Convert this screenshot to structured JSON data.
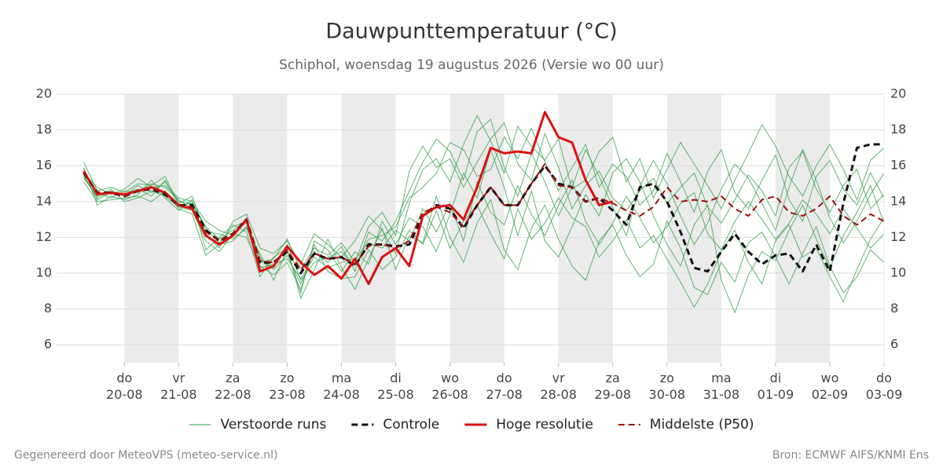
{
  "chart_data": {
    "type": "line",
    "title": "Dauwpunttemperatuur (°C)",
    "subtitle": "Schiphol, woensdag 19 augustus 2026 (Versie wo 00 uur)",
    "x": [
      "2026-08-19T06:00",
      "2026-08-19T12:00",
      "2026-08-19T18:00",
      "2026-08-20T00:00",
      "2026-08-20T06:00",
      "2026-08-20T12:00",
      "2026-08-20T18:00",
      "2026-08-21T00:00",
      "2026-08-21T06:00",
      "2026-08-21T12:00",
      "2026-08-21T18:00",
      "2026-08-22T00:00",
      "2026-08-22T06:00",
      "2026-08-22T12:00",
      "2026-08-22T18:00",
      "2026-08-23T00:00",
      "2026-08-23T06:00",
      "2026-08-23T12:00",
      "2026-08-23T18:00",
      "2026-08-24T00:00",
      "2026-08-24T06:00",
      "2026-08-24T12:00",
      "2026-08-24T18:00",
      "2026-08-25T00:00",
      "2026-08-25T06:00",
      "2026-08-25T12:00",
      "2026-08-25T18:00",
      "2026-08-26T00:00",
      "2026-08-26T06:00",
      "2026-08-26T12:00",
      "2026-08-26T18:00",
      "2026-08-27T00:00",
      "2026-08-27T06:00",
      "2026-08-27T12:00",
      "2026-08-27T18:00",
      "2026-08-28T00:00",
      "2026-08-28T06:00",
      "2026-08-28T12:00",
      "2026-08-28T18:00",
      "2026-08-29T00:00",
      "2026-08-29T06:00",
      "2026-08-29T12:00",
      "2026-08-29T18:00",
      "2026-08-30T00:00",
      "2026-08-30T06:00",
      "2026-08-30T12:00",
      "2026-08-30T18:00",
      "2026-08-31T00:00",
      "2026-08-31T06:00",
      "2026-08-31T12:00",
      "2026-08-31T18:00",
      "2026-09-01T00:00",
      "2026-09-01T06:00",
      "2026-09-01T12:00",
      "2026-09-01T18:00",
      "2026-09-02T00:00",
      "2026-09-02T06:00",
      "2026-09-02T12:00",
      "2026-09-02T18:00",
      "2026-09-03T00:00"
    ],
    "xlim": [
      "2026-08-18T18:00",
      "2026-09-03T00:00"
    ],
    "xticks": [
      {
        "value": "2026-08-20T00:00",
        "label": "do 20-08"
      },
      {
        "value": "2026-08-21T00:00",
        "label": "vr 21-08"
      },
      {
        "value": "2026-08-22T00:00",
        "label": "za 22-08"
      },
      {
        "value": "2026-08-23T00:00",
        "label": "zo 23-08"
      },
      {
        "value": "2026-08-24T00:00",
        "label": "ma 24-08"
      },
      {
        "value": "2026-08-25T00:00",
        "label": "di 25-08"
      },
      {
        "value": "2026-08-26T00:00",
        "label": "wo 26-08"
      },
      {
        "value": "2026-08-27T00:00",
        "label": "do 27-08"
      },
      {
        "value": "2026-08-28T00:00",
        "label": "vr 28-08"
      },
      {
        "value": "2026-08-29T00:00",
        "label": "za 29-08"
      },
      {
        "value": "2026-08-30T00:00",
        "label": "zo 30-08"
      },
      {
        "value": "2026-08-31T00:00",
        "label": "ma 31-08"
      },
      {
        "value": "2026-09-01T00:00",
        "label": "di 01-09"
      },
      {
        "value": "2026-09-02T00:00",
        "label": "wo 02-09"
      },
      {
        "value": "2026-09-03T00:00",
        "label": "do 03-09"
      }
    ],
    "ylim": [
      5,
      20
    ],
    "yticks": [
      6,
      8,
      10,
      12,
      14,
      16,
      18,
      20
    ],
    "grid": true,
    "ensemble": {
      "name": "Verstoorde runs",
      "color": "#2e9e44",
      "members": [
        [
          15.4,
          14.2,
          14.6,
          14.3,
          14.9,
          14.5,
          15.1,
          14.0,
          13.9,
          12.6,
          11.9,
          12.4,
          12.8,
          10.9,
          10.2,
          11.0,
          9.4,
          11.2,
          10.6,
          11.5,
          10.1,
          12.3,
          11.8,
          12.9,
          14.6,
          16.2,
          17.5,
          16.8,
          15.2,
          17.9,
          18.6,
          15.9,
          14.3,
          16.7,
          15.1,
          13.2,
          14.8,
          16.9,
          15.4,
          13.7,
          12.1,
          14.9,
          16.3,
          15.0,
          13.2,
          11.6,
          12.8,
          14.7,
          16.1,
          15.3,
          13.9,
          12.4,
          14.8,
          16.9,
          15.2,
          13.1,
          11.7,
          12.9,
          14.4,
          15.6
        ],
        [
          15.9,
          13.8,
          14.3,
          14.1,
          14.4,
          15.2,
          14.2,
          13.5,
          14.1,
          11.3,
          12.0,
          12.7,
          12.3,
          9.8,
          10.9,
          11.4,
          8.6,
          10.2,
          11.9,
          10.3,
          9.1,
          10.8,
          12.5,
          10.2,
          12.1,
          11.7,
          14.3,
          12.0,
          10.6,
          12.8,
          14.1,
          11.3,
          10.2,
          12.5,
          13.8,
          11.9,
          10.4,
          9.6,
          11.8,
          12.7,
          11.0,
          9.8,
          10.5,
          12.9,
          11.4,
          9.2,
          8.8,
          10.6,
          9.5,
          11.7,
          12.3,
          10.9,
          9.4,
          11.1,
          12.6,
          10.4,
          8.9,
          9.8,
          11.3,
          10.6
        ],
        [
          16.2,
          14.6,
          14.8,
          14.5,
          15.0,
          14.9,
          15.4,
          13.9,
          14.3,
          12.2,
          11.4,
          12.9,
          13.3,
          11.4,
          11.1,
          11.8,
          10.5,
          12.2,
          11.6,
          10.9,
          11.8,
          13.2,
          12.4,
          11.1,
          13.9,
          15.8,
          16.4,
          15.1,
          17.2,
          18.8,
          17.4,
          15.6,
          18.2,
          17.1,
          16.3,
          17.5,
          14.7,
          15.2,
          16.8,
          17.6,
          15.1,
          16.4,
          14.2,
          15.8,
          17.3,
          16.1,
          14.9,
          13.6,
          15.2,
          16.7,
          18.3,
          17.1,
          15.4,
          14.3,
          16.0,
          17.2,
          15.8,
          14.1,
          16.3,
          17.0
        ],
        [
          15.1,
          14.0,
          14.1,
          14.2,
          14.3,
          14.0,
          14.6,
          13.6,
          13.3,
          11.0,
          11.6,
          11.8,
          12.6,
          10.4,
          9.9,
          10.6,
          9.1,
          11.6,
          10.1,
          9.7,
          9.8,
          11.3,
          10.2,
          10.9,
          12.4,
          11.6,
          13.5,
          11.4,
          12.9,
          13.8,
          12.2,
          10.8,
          13.6,
          11.9,
          12.8,
          14.2,
          13.1,
          12.6,
          10.9,
          11.8,
          13.0,
          11.4,
          12.1,
          10.8,
          9.5,
          8.1,
          9.4,
          11.2,
          12.4,
          10.6,
          9.4,
          11.8,
          12.7,
          10.9,
          11.4,
          9.8,
          8.4,
          10.2,
          11.9,
          13.1
        ],
        [
          15.6,
          14.8,
          14.4,
          14.7,
          15.3,
          14.8,
          14.9,
          14.2,
          14.0,
          12.9,
          12.4,
          12.1,
          13.1,
          10.6,
          10.8,
          11.9,
          10.2,
          11.4,
          11.0,
          11.7,
          10.6,
          12.6,
          13.4,
          12.1,
          15.7,
          17.1,
          15.9,
          16.4,
          14.8,
          16.2,
          17.5,
          18.4,
          16.1,
          15.2,
          17.8,
          15.9,
          13.6,
          14.9,
          15.7,
          14.2,
          13.5,
          14.6,
          15.3,
          13.9,
          14.8,
          15.6,
          13.7,
          12.8,
          14.1,
          15.5,
          14.6,
          13.2,
          15.9,
          16.8,
          14.7,
          13.4,
          14.9,
          15.8,
          13.6,
          14.4
        ],
        [
          15.3,
          14.3,
          14.7,
          14.0,
          14.2,
          14.6,
          14.3,
          13.7,
          13.5,
          11.8,
          11.2,
          12.2,
          12.0,
          10.3,
          10.5,
          10.8,
          9.7,
          10.9,
          10.3,
          10.6,
          10.8,
          11.7,
          11.4,
          12.4,
          11.8,
          13.6,
          12.3,
          13.9,
          11.8,
          15.1,
          13.4,
          12.7,
          14.9,
          13.3,
          12.1,
          13.8,
          15.2,
          12.9,
          11.6,
          12.8,
          14.3,
          13.1,
          11.7,
          12.6,
          13.9,
          14.5,
          12.2,
          11.3,
          12.9,
          14.0,
          13.0,
          11.9,
          12.8,
          14.1,
          13.3,
          12.2,
          13.6,
          12.5,
          11.4,
          12.2
        ],
        [
          15.8,
          14.5,
          14.2,
          14.6,
          14.5,
          15.0,
          14.8,
          14.1,
          13.6,
          12.3,
          12.2,
          11.9,
          12.5,
          11.1,
          9.6,
          11.3,
          8.9,
          11.8,
          11.3,
          10.1,
          11.2,
          10.5,
          12.9,
          11.6,
          13.1,
          12.6,
          11.2,
          13.3,
          15.6,
          14.2,
          16.9,
          14.8,
          12.1,
          14.6,
          11.8,
          10.9,
          12.6,
          14.4,
          13.2,
          15.6,
          16.4,
          15.1,
          13.2,
          11.6,
          10.4,
          12.7,
          13.8,
          9.6,
          7.8,
          9.9,
          11.2,
          10.7,
          12.4,
          13.8,
          11.9,
          10.3,
          12.1,
          13.4,
          14.9,
          12.8
        ],
        [
          15.5,
          14.1,
          14.5,
          14.4,
          14.7,
          14.3,
          15.2,
          13.8,
          13.9,
          12.5,
          11.7,
          12.6,
          12.9,
          10.7,
          10.3,
          11.6,
          9.6,
          10.6,
          10.9,
          11.2,
          10.4,
          11.9,
          12.1,
          12.6,
          14.2,
          14.8,
          15.6,
          17.3,
          16.9,
          15.4,
          15.8,
          17.6,
          16.4,
          18.1,
          16.2,
          14.6,
          15.9,
          17.2,
          14.8,
          16.1,
          15.4,
          13.8,
          14.6,
          16.7,
          15.1,
          13.4,
          15.7,
          16.9,
          14.5,
          13.6,
          15.2,
          16.6,
          14.1,
          12.9,
          15.4,
          16.3,
          14.7,
          13.8,
          15.6,
          14.2
        ]
      ]
    },
    "series": [
      {
        "name": "Controle",
        "color": "#111111",
        "dashed": true,
        "linewidth": 3,
        "values": [
          15.6,
          14.5,
          14.5,
          14.3,
          14.6,
          14.7,
          14.4,
          13.8,
          13.8,
          12.4,
          11.8,
          12.2,
          13.0,
          10.6,
          10.6,
          11.2,
          10.0,
          11.1,
          10.8,
          10.9,
          10.4,
          11.6,
          11.6,
          11.5,
          11.6,
          13.2,
          13.8,
          13.6,
          12.5,
          13.8,
          14.8,
          13.8,
          13.8,
          15.0,
          16.0,
          15.0,
          14.8,
          14.0,
          14.2,
          13.5,
          12.7,
          14.8,
          15.0,
          14.0,
          12.3,
          10.3,
          10.1,
          11.2,
          12.2,
          11.2,
          10.5,
          11.0,
          11.1,
          10.1,
          11.6,
          10.1,
          13.9,
          17.0,
          17.2,
          17.2
        ]
      },
      {
        "name": "Hoge resolutie",
        "color": "#dd1111",
        "dashed": false,
        "linewidth": 3,
        "values": [
          15.7,
          14.4,
          14.5,
          14.4,
          14.6,
          14.8,
          14.5,
          13.8,
          13.6,
          12.1,
          11.6,
          12.1,
          13.0,
          10.1,
          10.4,
          11.5,
          10.6,
          9.9,
          10.4,
          9.7,
          10.8,
          9.4,
          10.9,
          11.4,
          10.4,
          13.2,
          13.7,
          13.8,
          13.0,
          14.8,
          17.0,
          16.7,
          16.8,
          16.7,
          19.0,
          17.6,
          17.3,
          15.2,
          13.8,
          14.0,
          null,
          null,
          null,
          null,
          null,
          null,
          null,
          null,
          null,
          null,
          null,
          null,
          null,
          null,
          null,
          null,
          null,
          null,
          null,
          null
        ]
      },
      {
        "name": "Middelste (P50)",
        "color": "#a01010",
        "dashed": true,
        "linewidth": 2,
        "values": [
          15.6,
          14.5,
          14.5,
          14.3,
          14.6,
          14.7,
          14.5,
          13.8,
          13.7,
          12.3,
          11.8,
          12.2,
          13.0,
          10.7,
          10.6,
          11.3,
          10.2,
          11.1,
          10.8,
          10.9,
          10.5,
          11.5,
          11.6,
          11.4,
          11.8,
          13.4,
          13.7,
          13.4,
          12.6,
          13.8,
          14.8,
          13.8,
          13.8,
          15.0,
          16.1,
          14.9,
          14.8,
          14.0,
          14.2,
          13.9,
          13.5,
          13.2,
          13.7,
          14.8,
          14.0,
          14.1,
          14.0,
          14.3,
          13.6,
          13.2,
          14.1,
          14.3,
          13.4,
          13.2,
          13.6,
          14.3,
          13.2,
          12.7,
          13.3,
          12.9
        ]
      }
    ]
  },
  "footer": {
    "left": "Gegenereerd door MeteoVPS (meteo-service.nl)",
    "right": "Bron: ECMWF AIFS/KNMI Ens"
  }
}
